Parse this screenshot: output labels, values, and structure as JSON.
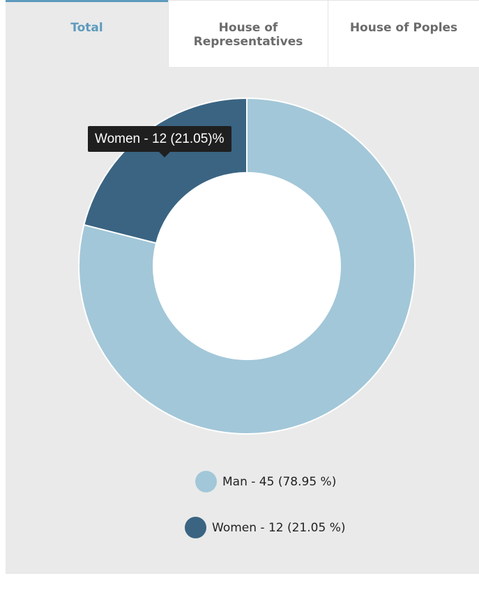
{
  "tabs": [
    {
      "label": "Total",
      "active": true
    },
    {
      "label": "House of Representatives",
      "active": false
    },
    {
      "label": "House of Poples",
      "active": false
    }
  ],
  "tooltip": {
    "text": "Women - 12 (21.05)%"
  },
  "legend": [
    {
      "label": "Man - 45 (78.95 %)",
      "color": "#a2c7d8"
    },
    {
      "label": "Women - 12 (21.05 %)",
      "color": "#3a6482"
    }
  ],
  "chart_data": {
    "type": "pie",
    "donut": true,
    "categories": [
      "Man",
      "Women"
    ],
    "values": [
      45,
      12
    ],
    "percentages": [
      78.95,
      21.05
    ],
    "colors": [
      "#a2c7d8",
      "#3a6482"
    ],
    "legend_position": "bottom"
  }
}
